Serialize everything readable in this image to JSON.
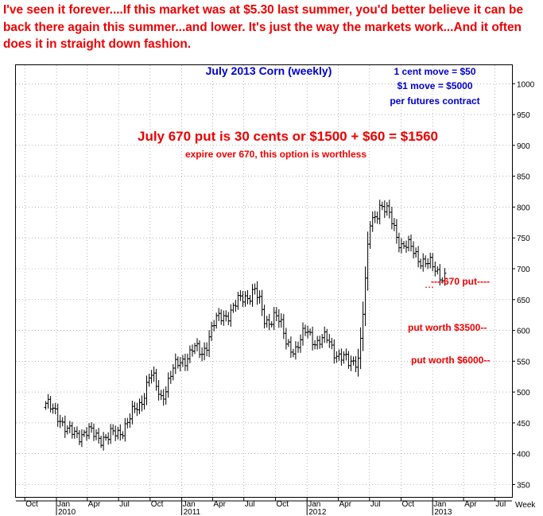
{
  "headline": "I've seen it forever....If this market was at $5.30 last summer, you'd better believe it can be back there again this summer...and lower. It's just the way the markets work...And it often does it in straight down fashion.",
  "colors": {
    "red": "#ee0000",
    "blue": "#0000cc",
    "bars": "#000000",
    "grid": "#888888",
    "background": "#ffffff"
  },
  "chart_data": {
    "type": "ohlc",
    "title": "July 2013 Corn (weekly)",
    "xlabel": "Week",
    "ylabel": "",
    "ylim": [
      330,
      1030
    ],
    "y_ticks": [
      350,
      400,
      450,
      500,
      550,
      600,
      650,
      700,
      750,
      800,
      850,
      900,
      950,
      1000
    ],
    "grid": true,
    "months": [
      {
        "label": "Oct",
        "date": "2009-10"
      },
      {
        "label": "Jan",
        "date": "2010-01"
      },
      {
        "label": "Apr",
        "date": "2010-04"
      },
      {
        "label": "Jul",
        "date": "2010-07"
      },
      {
        "label": "Oct",
        "date": "2010-10"
      },
      {
        "label": "Jan",
        "date": "2011-01"
      },
      {
        "label": "Apr",
        "date": "2011-04"
      },
      {
        "label": "Jul",
        "date": "2011-07"
      },
      {
        "label": "Oct",
        "date": "2011-10"
      },
      {
        "label": "Jan",
        "date": "2012-01"
      },
      {
        "label": "Apr",
        "date": "2012-04"
      },
      {
        "label": "Jul",
        "date": "2012-07"
      },
      {
        "label": "Oct",
        "date": "2012-10"
      },
      {
        "label": "Jan",
        "date": "2013-01"
      },
      {
        "label": "Apr",
        "date": "2013-04"
      },
      {
        "label": "Jul",
        "date": "2013-07"
      }
    ],
    "years": [
      {
        "label": "2010",
        "date": "2010-01"
      },
      {
        "label": "2011",
        "date": "2011-01"
      },
      {
        "label": "2012",
        "date": "2012-01"
      },
      {
        "label": "2013",
        "date": "2013-01"
      }
    ],
    "waypoints": [
      {
        "date": "2009-12",
        "value": 475
      },
      {
        "date": "2010-01",
        "value": 472
      },
      {
        "date": "2010-02",
        "value": 432
      },
      {
        "date": "2010-03",
        "value": 435
      },
      {
        "date": "2010-05",
        "value": 430
      },
      {
        "date": "2010-06",
        "value": 425
      },
      {
        "date": "2010-07",
        "value": 435
      },
      {
        "date": "2010-08",
        "value": 455
      },
      {
        "date": "2010-09",
        "value": 480
      },
      {
        "date": "2010-10",
        "value": 530
      },
      {
        "date": "2010-11",
        "value": 490
      },
      {
        "date": "2010-12",
        "value": 530
      },
      {
        "date": "2011-01",
        "value": 550
      },
      {
        "date": "2011-02",
        "value": 570
      },
      {
        "date": "2011-03",
        "value": 560
      },
      {
        "date": "2011-04",
        "value": 610
      },
      {
        "date": "2011-05",
        "value": 620
      },
      {
        "date": "2011-06",
        "value": 640
      },
      {
        "date": "2011-07",
        "value": 650
      },
      {
        "date": "2011-08",
        "value": 670
      },
      {
        "date": "2011-09",
        "value": 610
      },
      {
        "date": "2011-10",
        "value": 630
      },
      {
        "date": "2011-11",
        "value": 580
      },
      {
        "date": "2011-12",
        "value": 570
      },
      {
        "date": "2012-01",
        "value": 600
      },
      {
        "date": "2012-02",
        "value": 580
      },
      {
        "date": "2012-03",
        "value": 585
      },
      {
        "date": "2012-04",
        "value": 560
      },
      {
        "date": "2012-05",
        "value": 545
      },
      {
        "date": "2012-06",
        "value": 560
      },
      {
        "date": "2012-06-20",
        "value": 680
      },
      {
        "date": "2012-07",
        "value": 770
      },
      {
        "date": "2012-08",
        "value": 805
      },
      {
        "date": "2012-09",
        "value": 780
      },
      {
        "date": "2012-10",
        "value": 740
      },
      {
        "date": "2012-11",
        "value": 730
      },
      {
        "date": "2012-12",
        "value": 715
      },
      {
        "date": "2013-01",
        "value": 700
      },
      {
        "date": "2013-02",
        "value": 690
      }
    ],
    "annotations": {
      "contract_info": [
        "1 cent move = $50",
        "$1 move = $5000",
        "per futures contract"
      ],
      "put_cost": "July 670 put is 30 cents or $1500 + $60 = $1560",
      "expire_note": "expire over 670, this option is worthless",
      "strike_label": "----670 put----",
      "strike": 670,
      "levels": [
        {
          "text": "put worth $3500--",
          "value": 600
        },
        {
          "text": "put worth $6000--",
          "value": 550
        }
      ]
    }
  }
}
